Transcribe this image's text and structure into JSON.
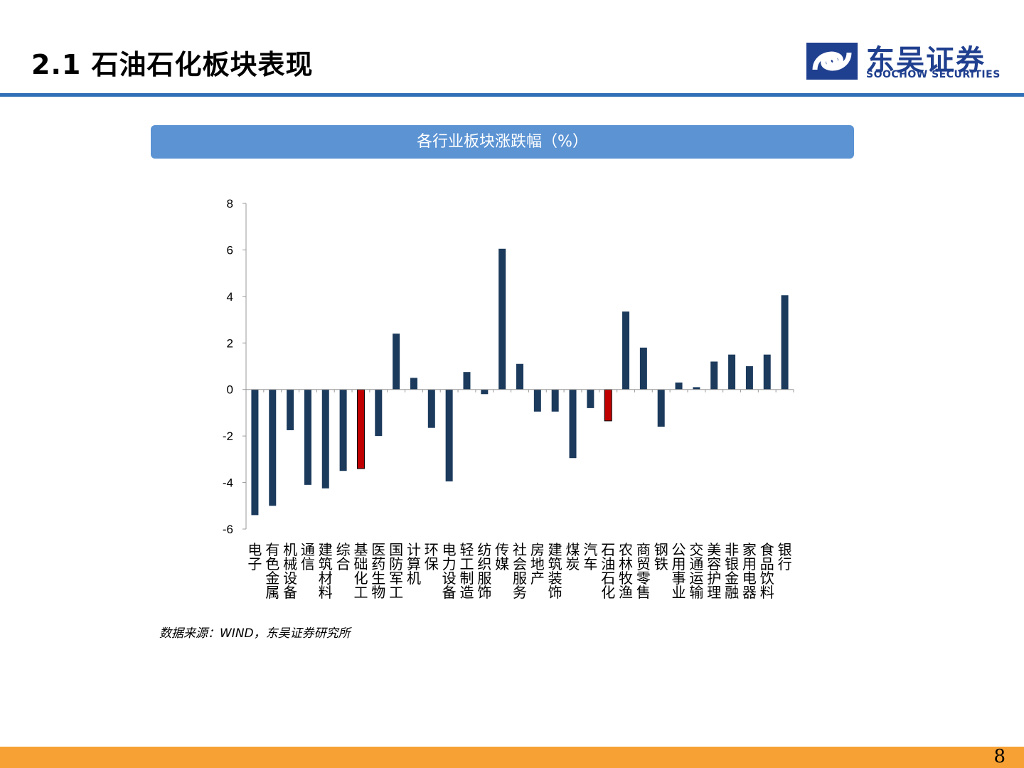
{
  "header": {
    "title": "2.1 石油石化板块表现"
  },
  "logo": {
    "name_cn": "东吴证券",
    "name_en": "SOOCHOW SECURITIES",
    "icon": "soochow-logo-icon",
    "color": "#1F3F8F"
  },
  "banner": {
    "title": "各行业板块涨跌幅（%）"
  },
  "chart_data": {
    "type": "bar",
    "categories": [
      "电子",
      "有色金属",
      "机械设备",
      "通信",
      "建筑材料",
      "综合",
      "基础化工",
      "医药生物",
      "国防军工",
      "计算机",
      "环保",
      "电力设备",
      "轻工制造",
      "纺织服饰",
      "传媒",
      "社会服务",
      "房地产",
      "建筑装饰",
      "煤炭",
      "汽车",
      "石油石化",
      "农林牧渔",
      "商贸零售",
      "钢铁",
      "公用事业",
      "交通运输",
      "美容护理",
      "非银金融",
      "家用电器",
      "食品饮料",
      "银行"
    ],
    "values": [
      -5.4,
      -5.0,
      -1.75,
      -4.1,
      -4.25,
      -3.5,
      -3.4,
      -2.0,
      2.4,
      0.5,
      -1.65,
      -3.95,
      0.75,
      -0.2,
      6.05,
      1.1,
      -0.95,
      -0.95,
      -2.95,
      -0.8,
      -1.35,
      3.35,
      1.8,
      -1.6,
      0.3,
      0.1,
      1.2,
      1.5,
      1.0,
      1.5,
      4.05
    ],
    "highlight": [
      "基础化工",
      "石油石化"
    ],
    "ylim": [
      -6,
      8
    ],
    "yticks": [
      -6,
      -4,
      -2,
      0,
      2,
      4,
      6,
      8
    ],
    "colors": {
      "default": "#1B3A5C",
      "highlight": "#C00000"
    },
    "grid": false,
    "legend": "none"
  },
  "source": "数据来源：WIND，东吴证券研究所",
  "page_number": "8",
  "colors": {
    "accent_line": "#2F6FB7",
    "banner": "#5B93D3",
    "footer": "#F7A135"
  }
}
